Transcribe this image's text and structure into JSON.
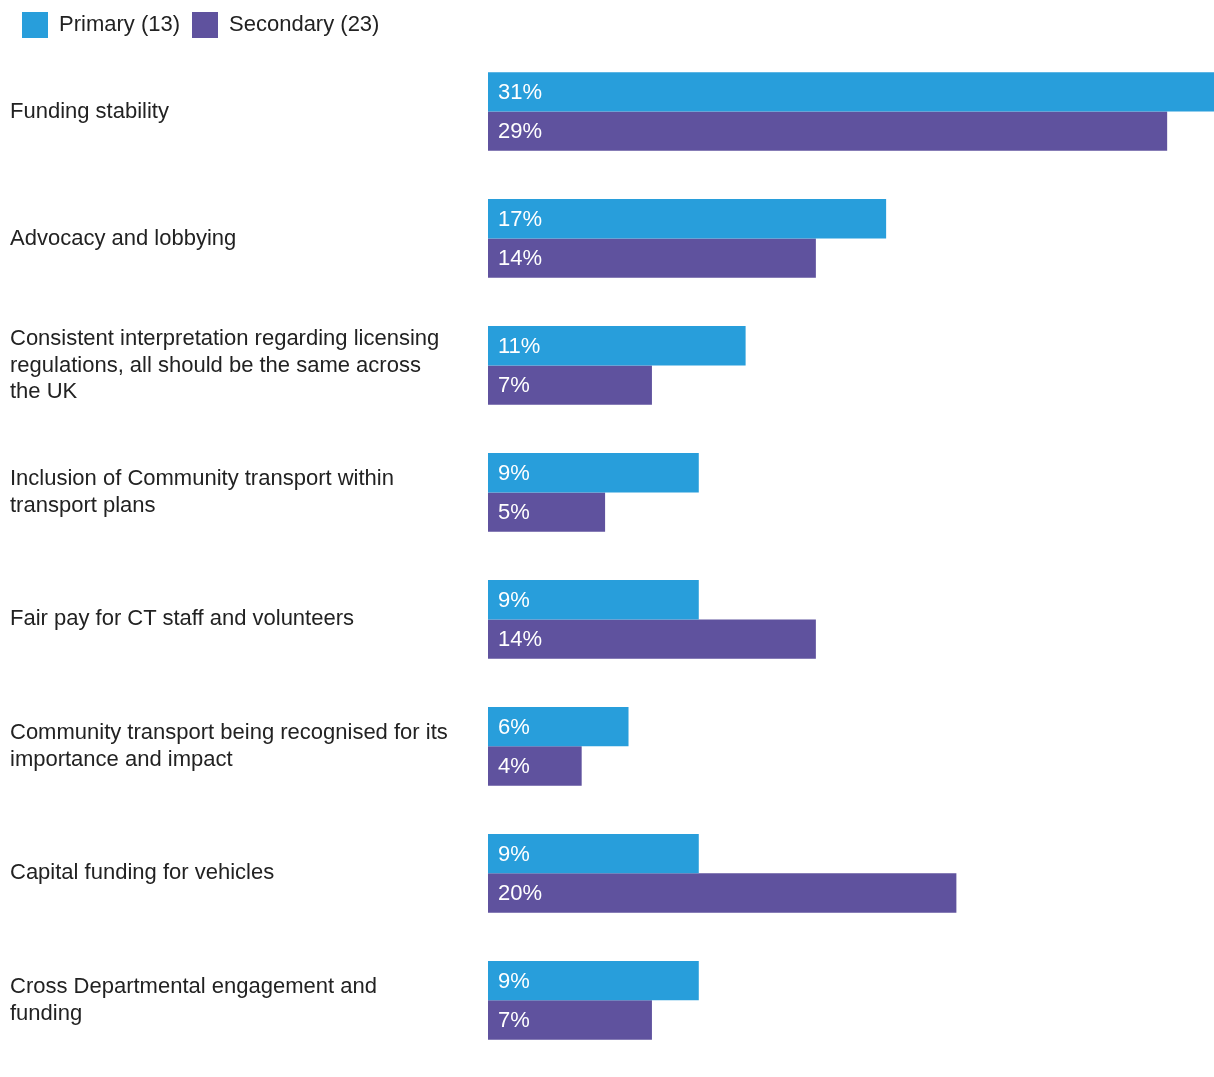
{
  "chart_data": {
    "type": "bar",
    "orientation": "horizontal",
    "legend": "top left",
    "categories": [
      "Funding stability",
      "Advocacy and lobbying",
      "Consistent interpretation regarding licensing regulations, all should be the same across the UK",
      "Inclusion of Community transport within transport plans",
      "Fair pay for CT staff and volunteers",
      "Community transport being recognised for its importance and impact",
      "Capital funding for vehicles",
      "Cross Departmental engagement and funding"
    ],
    "xlim": [
      0,
      31
    ],
    "series": [
      {
        "name": "Primary (13)",
        "color": "#289edb",
        "values": [
          31,
          17,
          11,
          9,
          9,
          6,
          9,
          9
        ],
        "value_labels": [
          "31%",
          "17%",
          "11%",
          "9%",
          "9%",
          "6%",
          "9%",
          "9%"
        ]
      },
      {
        "name": "Secondary (23)",
        "color": "#5f529e",
        "values": [
          29,
          14,
          7,
          5,
          14,
          4,
          20,
          7
        ],
        "value_labels": [
          "29%",
          "14%",
          "7%",
          "5%",
          "14%",
          "4%",
          "20%",
          "7%"
        ]
      }
    ]
  }
}
